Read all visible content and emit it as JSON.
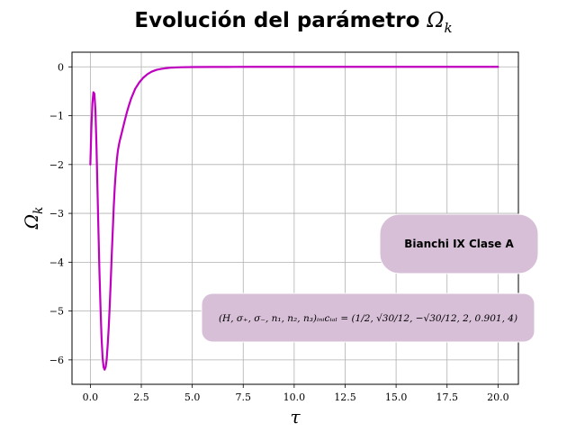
{
  "chart_data": {
    "type": "line",
    "title_prefix": "Evolución del parámetro",
    "title_symbol": "Ω",
    "title_subscript": "k",
    "xlabel": "τ",
    "ylabel_symbol": "Ω",
    "ylabel_subscript": "k",
    "xlim": [
      -0.9,
      21
    ],
    "ylim": [
      -6.5,
      0.3
    ],
    "xticks": [
      0,
      2.5,
      5,
      7.5,
      10,
      12.5,
      15,
      17.5,
      20
    ],
    "xtick_labels": [
      "0.0",
      "2.5",
      "5.0",
      "7.5",
      "10.0",
      "12.5",
      "15.0",
      "17.5",
      "20.0"
    ],
    "yticks": [
      0,
      -1,
      -2,
      -3,
      -4,
      -5,
      -6
    ],
    "ytick_labels": [
      "0",
      "−1",
      "−2",
      "−3",
      "−4",
      "−5",
      "−6"
    ],
    "grid": true,
    "series": [
      {
        "color": "#bf00bf",
        "x": [
          0,
          0.05,
          0.1,
          0.15,
          0.2,
          0.25,
          0.3,
          0.35,
          0.4,
          0.45,
          0.5,
          0.55,
          0.6,
          0.65,
          0.7,
          0.75,
          0.8,
          0.85,
          0.9,
          0.95,
          1.0,
          1.05,
          1.1,
          1.15,
          1.2,
          1.25,
          1.3,
          1.35,
          1.4,
          1.45,
          1.5,
          1.6,
          1.7,
          1.8,
          1.9,
          2.0,
          2.2,
          2.4,
          2.6,
          2.8,
          3.0,
          3.25,
          3.5,
          3.75,
          4.0,
          4.5,
          5.0,
          6.0,
          7.0,
          8.0,
          10.0,
          12.5,
          15.0,
          17.5,
          20.0
        ],
        "y": [
          -2.0,
          -1.25,
          -0.75,
          -0.52,
          -0.55,
          -0.9,
          -1.6,
          -2.5,
          -3.4,
          -4.25,
          -4.95,
          -5.55,
          -5.95,
          -6.15,
          -6.2,
          -6.15,
          -6.0,
          -5.7,
          -5.35,
          -4.9,
          -4.4,
          -3.85,
          -3.35,
          -2.85,
          -2.45,
          -2.15,
          -1.9,
          -1.72,
          -1.6,
          -1.5,
          -1.42,
          -1.25,
          -1.08,
          -0.92,
          -0.78,
          -0.65,
          -0.45,
          -0.32,
          -0.22,
          -0.15,
          -0.1,
          -0.06,
          -0.04,
          -0.025,
          -0.015,
          -0.008,
          -0.004,
          -0.002,
          -0.001,
          0,
          0,
          0,
          0,
          0,
          0
        ]
      }
    ],
    "annotations": [
      {
        "text": "Bianchi IX Clase A",
        "fill": "#d8bfd8"
      },
      {
        "text": "(H, σ₊, σ₋, n₁, n₂, n₃)ᵢₙᵢcᵢₐₗ = (1/2, √30/12, −√30/12, 2, 0.901, 4)",
        "fill": "#d8bfd8"
      }
    ]
  }
}
